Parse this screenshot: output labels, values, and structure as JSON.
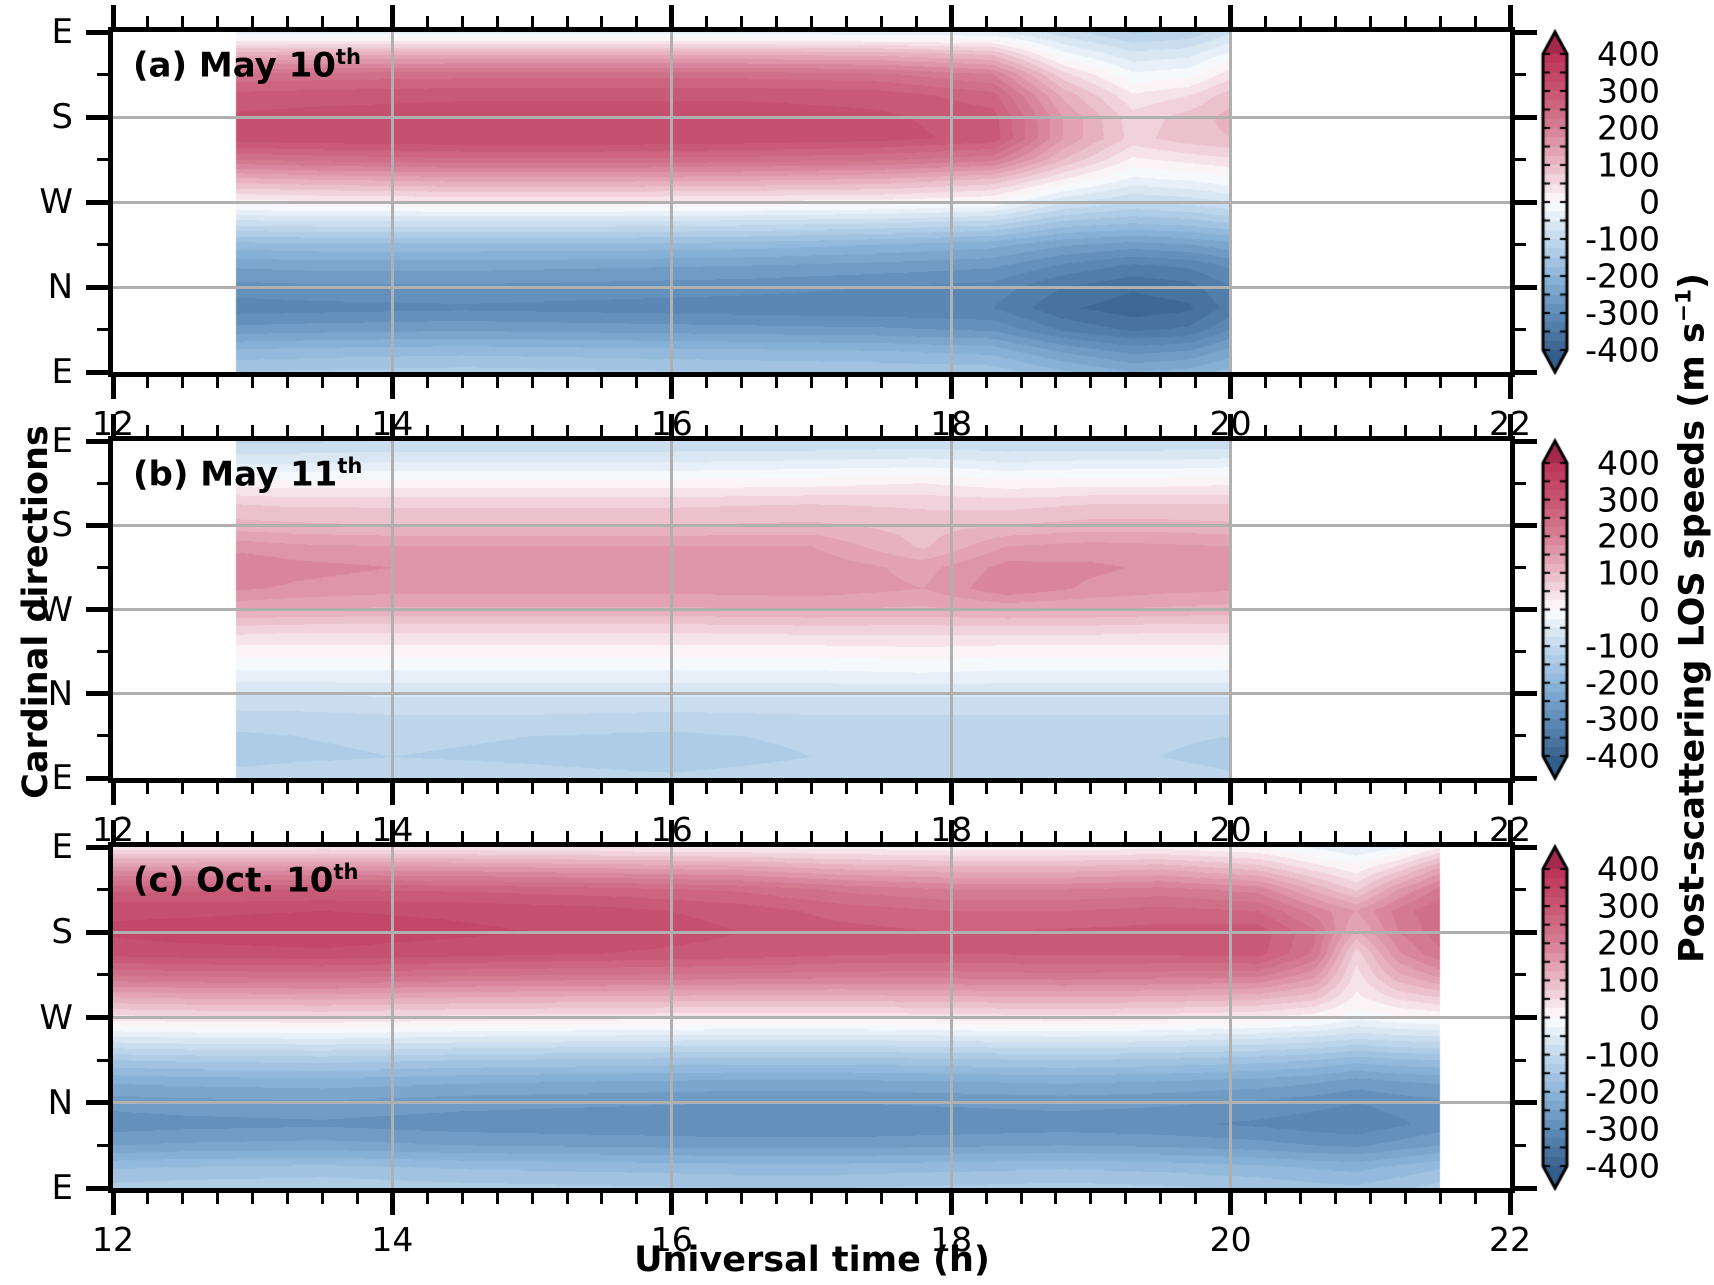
{
  "figure": {
    "x_axis_label": "Universal time (h)",
    "y_axis_label": "Cardinal directions",
    "colorbar_label_prefix": "Post-scattering LOS speeds (m s",
    "colorbar_label_sup": "−1",
    "colorbar_label_suffix": ")",
    "x_tick_labels": [
      "12",
      "14",
      "16",
      "18",
      "20",
      "22"
    ],
    "y_tick_labels": [
      "E",
      "S",
      "W",
      "N",
      "E"
    ],
    "colorbar_tick_labels": [
      "400",
      "300",
      "200",
      "100",
      "0",
      "-100",
      "-200",
      "-300",
      "-400"
    ],
    "grid_color": "#b0b0b0",
    "axis_color": "#000000",
    "background": "#ffffff"
  },
  "colormap": {
    "band_step": 25,
    "stops": [
      [
        -400,
        "#3a648f"
      ],
      [
        -300,
        "#5e8cb8"
      ],
      [
        -200,
        "#8cb5da"
      ],
      [
        -100,
        "#c3d9ed"
      ],
      [
        0,
        "#fdfdfe"
      ],
      [
        100,
        "#eab8c7"
      ],
      [
        200,
        "#d67e97"
      ],
      [
        300,
        "#c75572"
      ],
      [
        400,
        "#bb3058"
      ]
    ],
    "over_color": "#a32a4e",
    "under_color": "#315e8a"
  },
  "chart_data": [
    {
      "type": "heatmap",
      "panel": "a",
      "title": "(a) May 10",
      "title_sup": "th",
      "x_range": [
        12,
        22
      ],
      "x_ticks": [
        12,
        14,
        16,
        18,
        20,
        22
      ],
      "y_axis": "cardinal azimuth E-S-W-N-E",
      "azimuth_ticks_deg": [
        0,
        90,
        180,
        270,
        360
      ],
      "colorbar_range": [
        -400,
        400
      ],
      "value_unit": "m s-1",
      "x": [
        12.88,
        13.5,
        14.5,
        15.5,
        16.5,
        17.5,
        18.3,
        18.8,
        19.3,
        19.7,
        20.0
      ],
      "azimuth_deg": [
        0,
        22.5,
        45,
        67.5,
        90,
        112.5,
        135,
        157.5,
        180,
        202.5,
        225,
        247.5,
        270,
        292.5,
        315,
        337.5,
        360
      ],
      "values": [
        [
          -40,
          -40,
          -40,
          -40,
          -40,
          -45,
          -50,
          -90,
          -130,
          -120,
          -80
        ],
        [
          110,
          115,
          115,
          115,
          115,
          110,
          90,
          -20,
          -70,
          -60,
          -20
        ],
        [
          230,
          235,
          240,
          240,
          240,
          230,
          200,
          60,
          -20,
          -10,
          40
        ],
        [
          285,
          290,
          295,
          295,
          295,
          290,
          260,
          120,
          30,
          50,
          90
        ],
        [
          305,
          310,
          315,
          315,
          315,
          305,
          285,
          150,
          60,
          85,
          110
        ],
        [
          315,
          320,
          325,
          325,
          320,
          310,
          290,
          150,
          65,
          90,
          100
        ],
        [
          225,
          235,
          245,
          245,
          240,
          230,
          210,
          100,
          20,
          35,
          45
        ],
        [
          110,
          120,
          130,
          130,
          125,
          115,
          90,
          20,
          -35,
          -25,
          -10
        ],
        [
          15,
          20,
          25,
          25,
          20,
          15,
          0,
          -70,
          -100,
          -90,
          -75
        ],
        [
          -90,
          -85,
          -85,
          -85,
          -90,
          -100,
          -115,
          -160,
          -175,
          -165,
          -150
        ],
        [
          -185,
          -180,
          -180,
          -180,
          -185,
          -200,
          -215,
          -245,
          -260,
          -250,
          -235
        ],
        [
          -245,
          -240,
          -240,
          -245,
          -250,
          -260,
          -270,
          -305,
          -330,
          -320,
          -295
        ],
        [
          -285,
          -280,
          -280,
          -285,
          -290,
          -300,
          -310,
          -350,
          -370,
          -360,
          -325
        ],
        [
          -315,
          -310,
          -305,
          -310,
          -315,
          -320,
          -325,
          -370,
          -390,
          -380,
          -340
        ],
        [
          -265,
          -260,
          -255,
          -260,
          -265,
          -270,
          -280,
          -330,
          -355,
          -345,
          -300
        ],
        [
          -195,
          -190,
          -185,
          -190,
          -195,
          -200,
          -210,
          -255,
          -285,
          -275,
          -240
        ],
        [
          -150,
          -145,
          -140,
          -145,
          -150,
          -155,
          -160,
          -195,
          -225,
          -215,
          -190
        ]
      ]
    },
    {
      "type": "heatmap",
      "panel": "b",
      "title": "(b) May 11",
      "title_sup": "th",
      "x_range": [
        12,
        22
      ],
      "x_ticks": [
        12,
        14,
        16,
        18,
        20,
        22
      ],
      "y_axis": "cardinal azimuth E-S-W-N-E",
      "azimuth_ticks_deg": [
        0,
        90,
        180,
        270,
        360
      ],
      "colorbar_range": [
        -400,
        400
      ],
      "value_unit": "m s-1",
      "x": [
        12.88,
        13.3,
        14,
        15,
        16,
        17,
        17.8,
        18.4,
        19,
        19.5,
        20.0
      ],
      "azimuth_deg": [
        0,
        22.5,
        45,
        67.5,
        90,
        112.5,
        135,
        157.5,
        180,
        202.5,
        225,
        247.5,
        270,
        292.5,
        315,
        337.5,
        360
      ],
      "values": [
        [
          -105,
          -105,
          -100,
          -100,
          -100,
          -100,
          -95,
          -100,
          -100,
          -100,
          -95
        ],
        [
          -55,
          -55,
          -50,
          -50,
          -50,
          -45,
          -40,
          -50,
          -45,
          -45,
          -40
        ],
        [
          15,
          10,
          10,
          10,
          10,
          15,
          25,
          10,
          15,
          15,
          20
        ],
        [
          75,
          70,
          70,
          70,
          70,
          75,
          70,
          65,
          75,
          75,
          75
        ],
        [
          110,
          105,
          100,
          100,
          100,
          105,
          90,
          100,
          110,
          110,
          105
        ],
        [
          165,
          155,
          150,
          150,
          150,
          150,
          95,
          150,
          160,
          155,
          150
        ],
        [
          200,
          185,
          175,
          175,
          175,
          170,
          140,
          185,
          180,
          170,
          165
        ],
        [
          180,
          170,
          160,
          160,
          160,
          165,
          150,
          195,
          170,
          160,
          155
        ],
        [
          130,
          125,
          120,
          120,
          120,
          125,
          120,
          130,
          125,
          120,
          115
        ],
        [
          60,
          55,
          55,
          55,
          55,
          60,
          60,
          60,
          60,
          55,
          55
        ],
        [
          10,
          10,
          10,
          10,
          10,
          10,
          15,
          10,
          10,
          10,
          10
        ],
        [
          -30,
          -30,
          -30,
          -30,
          -30,
          -30,
          -25,
          -30,
          -30,
          -30,
          -30
        ],
        [
          -75,
          -75,
          -70,
          -70,
          -70,
          -70,
          -70,
          -70,
          -70,
          -70,
          -70
        ],
        [
          -105,
          -105,
          -100,
          -100,
          -105,
          -100,
          -100,
          -100,
          -100,
          -100,
          -100
        ],
        [
          -130,
          -125,
          -120,
          -125,
          -130,
          -120,
          -120,
          -120,
          -120,
          -120,
          -125
        ],
        [
          -135,
          -130,
          -125,
          -130,
          -140,
          -125,
          -125,
          -125,
          -125,
          -125,
          -135
        ],
        [
          -115,
          -110,
          -110,
          -115,
          -120,
          -110,
          -110,
          -110,
          -110,
          -110,
          -120
        ]
      ]
    },
    {
      "type": "heatmap",
      "panel": "c",
      "title": "(c) Oct. 10",
      "title_sup": "th",
      "x_range": [
        12,
        22
      ],
      "x_ticks": [
        12,
        14,
        16,
        18,
        20,
        22
      ],
      "y_axis": "cardinal azimuth E-S-W-N-E",
      "azimuth_ticks_deg": [
        0,
        90,
        180,
        270,
        360
      ],
      "colorbar_range": [
        -400,
        400
      ],
      "value_unit": "m s-1",
      "x": [
        12.0,
        12.5,
        13.5,
        14.5,
        15.5,
        16.5,
        17.2,
        18.0,
        18.8,
        19.5,
        20.2,
        20.6,
        20.9,
        21.2,
        21.5
      ],
      "azimuth_deg": [
        0,
        22.5,
        45,
        67.5,
        90,
        112.5,
        135,
        157.5,
        180,
        202.5,
        225,
        247.5,
        270,
        292.5,
        315,
        337.5,
        360
      ],
      "values": [
        [
          30,
          30,
          35,
          30,
          25,
          20,
          15,
          10,
          10,
          15,
          0,
          -30,
          -50,
          -30,
          20
        ],
        [
          160,
          160,
          165,
          160,
          150,
          140,
          120,
          110,
          110,
          120,
          90,
          40,
          10,
          60,
          130
        ],
        [
          270,
          270,
          275,
          270,
          260,
          245,
          220,
          200,
          200,
          210,
          190,
          120,
          70,
          150,
          210
        ],
        [
          320,
          320,
          325,
          320,
          310,
          290,
          265,
          250,
          250,
          260,
          250,
          190,
          150,
          210,
          250
        ],
        [
          330,
          335,
          340,
          330,
          320,
          300,
          285,
          275,
          280,
          285,
          290,
          230,
          120,
          200,
          240
        ],
        [
          310,
          315,
          320,
          310,
          300,
          290,
          280,
          275,
          280,
          280,
          285,
          220,
          60,
          170,
          220
        ],
        [
          230,
          235,
          240,
          230,
          225,
          220,
          215,
          215,
          220,
          215,
          210,
          160,
          40,
          120,
          160
        ],
        [
          130,
          135,
          140,
          130,
          125,
          120,
          120,
          125,
          130,
          125,
          115,
          90,
          20,
          60,
          80
        ],
        [
          40,
          45,
          50,
          40,
          35,
          30,
          30,
          35,
          40,
          35,
          25,
          10,
          -15,
          -5,
          5
        ],
        [
          -60,
          -55,
          -50,
          -60,
          -65,
          -70,
          -70,
          -65,
          -60,
          -65,
          -75,
          -85,
          -100,
          -90,
          -85
        ],
        [
          -150,
          -145,
          -140,
          -150,
          -155,
          -160,
          -160,
          -155,
          -150,
          -155,
          -165,
          -175,
          -190,
          -180,
          -175
        ],
        [
          -220,
          -215,
          -210,
          -220,
          -225,
          -230,
          -230,
          -225,
          -220,
          -225,
          -235,
          -245,
          -260,
          -250,
          -245
        ],
        [
          -265,
          -260,
          -255,
          -265,
          -270,
          -275,
          -275,
          -270,
          -265,
          -270,
          -280,
          -290,
          -300,
          -290,
          -280
        ],
        [
          -290,
          -285,
          -280,
          -290,
          -295,
          -300,
          -300,
          -295,
          -290,
          -295,
          -305,
          -315,
          -320,
          -305,
          -290
        ],
        [
          -250,
          -245,
          -240,
          -250,
          -255,
          -260,
          -260,
          -255,
          -250,
          -255,
          -265,
          -275,
          -280,
          -265,
          -250
        ],
        [
          -180,
          -175,
          -170,
          -180,
          -185,
          -190,
          -190,
          -185,
          -180,
          -185,
          -195,
          -205,
          -210,
          -195,
          -180
        ],
        [
          -140,
          -135,
          -130,
          -140,
          -145,
          -150,
          -150,
          -145,
          -140,
          -145,
          -155,
          -165,
          -170,
          -155,
          -140
        ]
      ]
    }
  ]
}
